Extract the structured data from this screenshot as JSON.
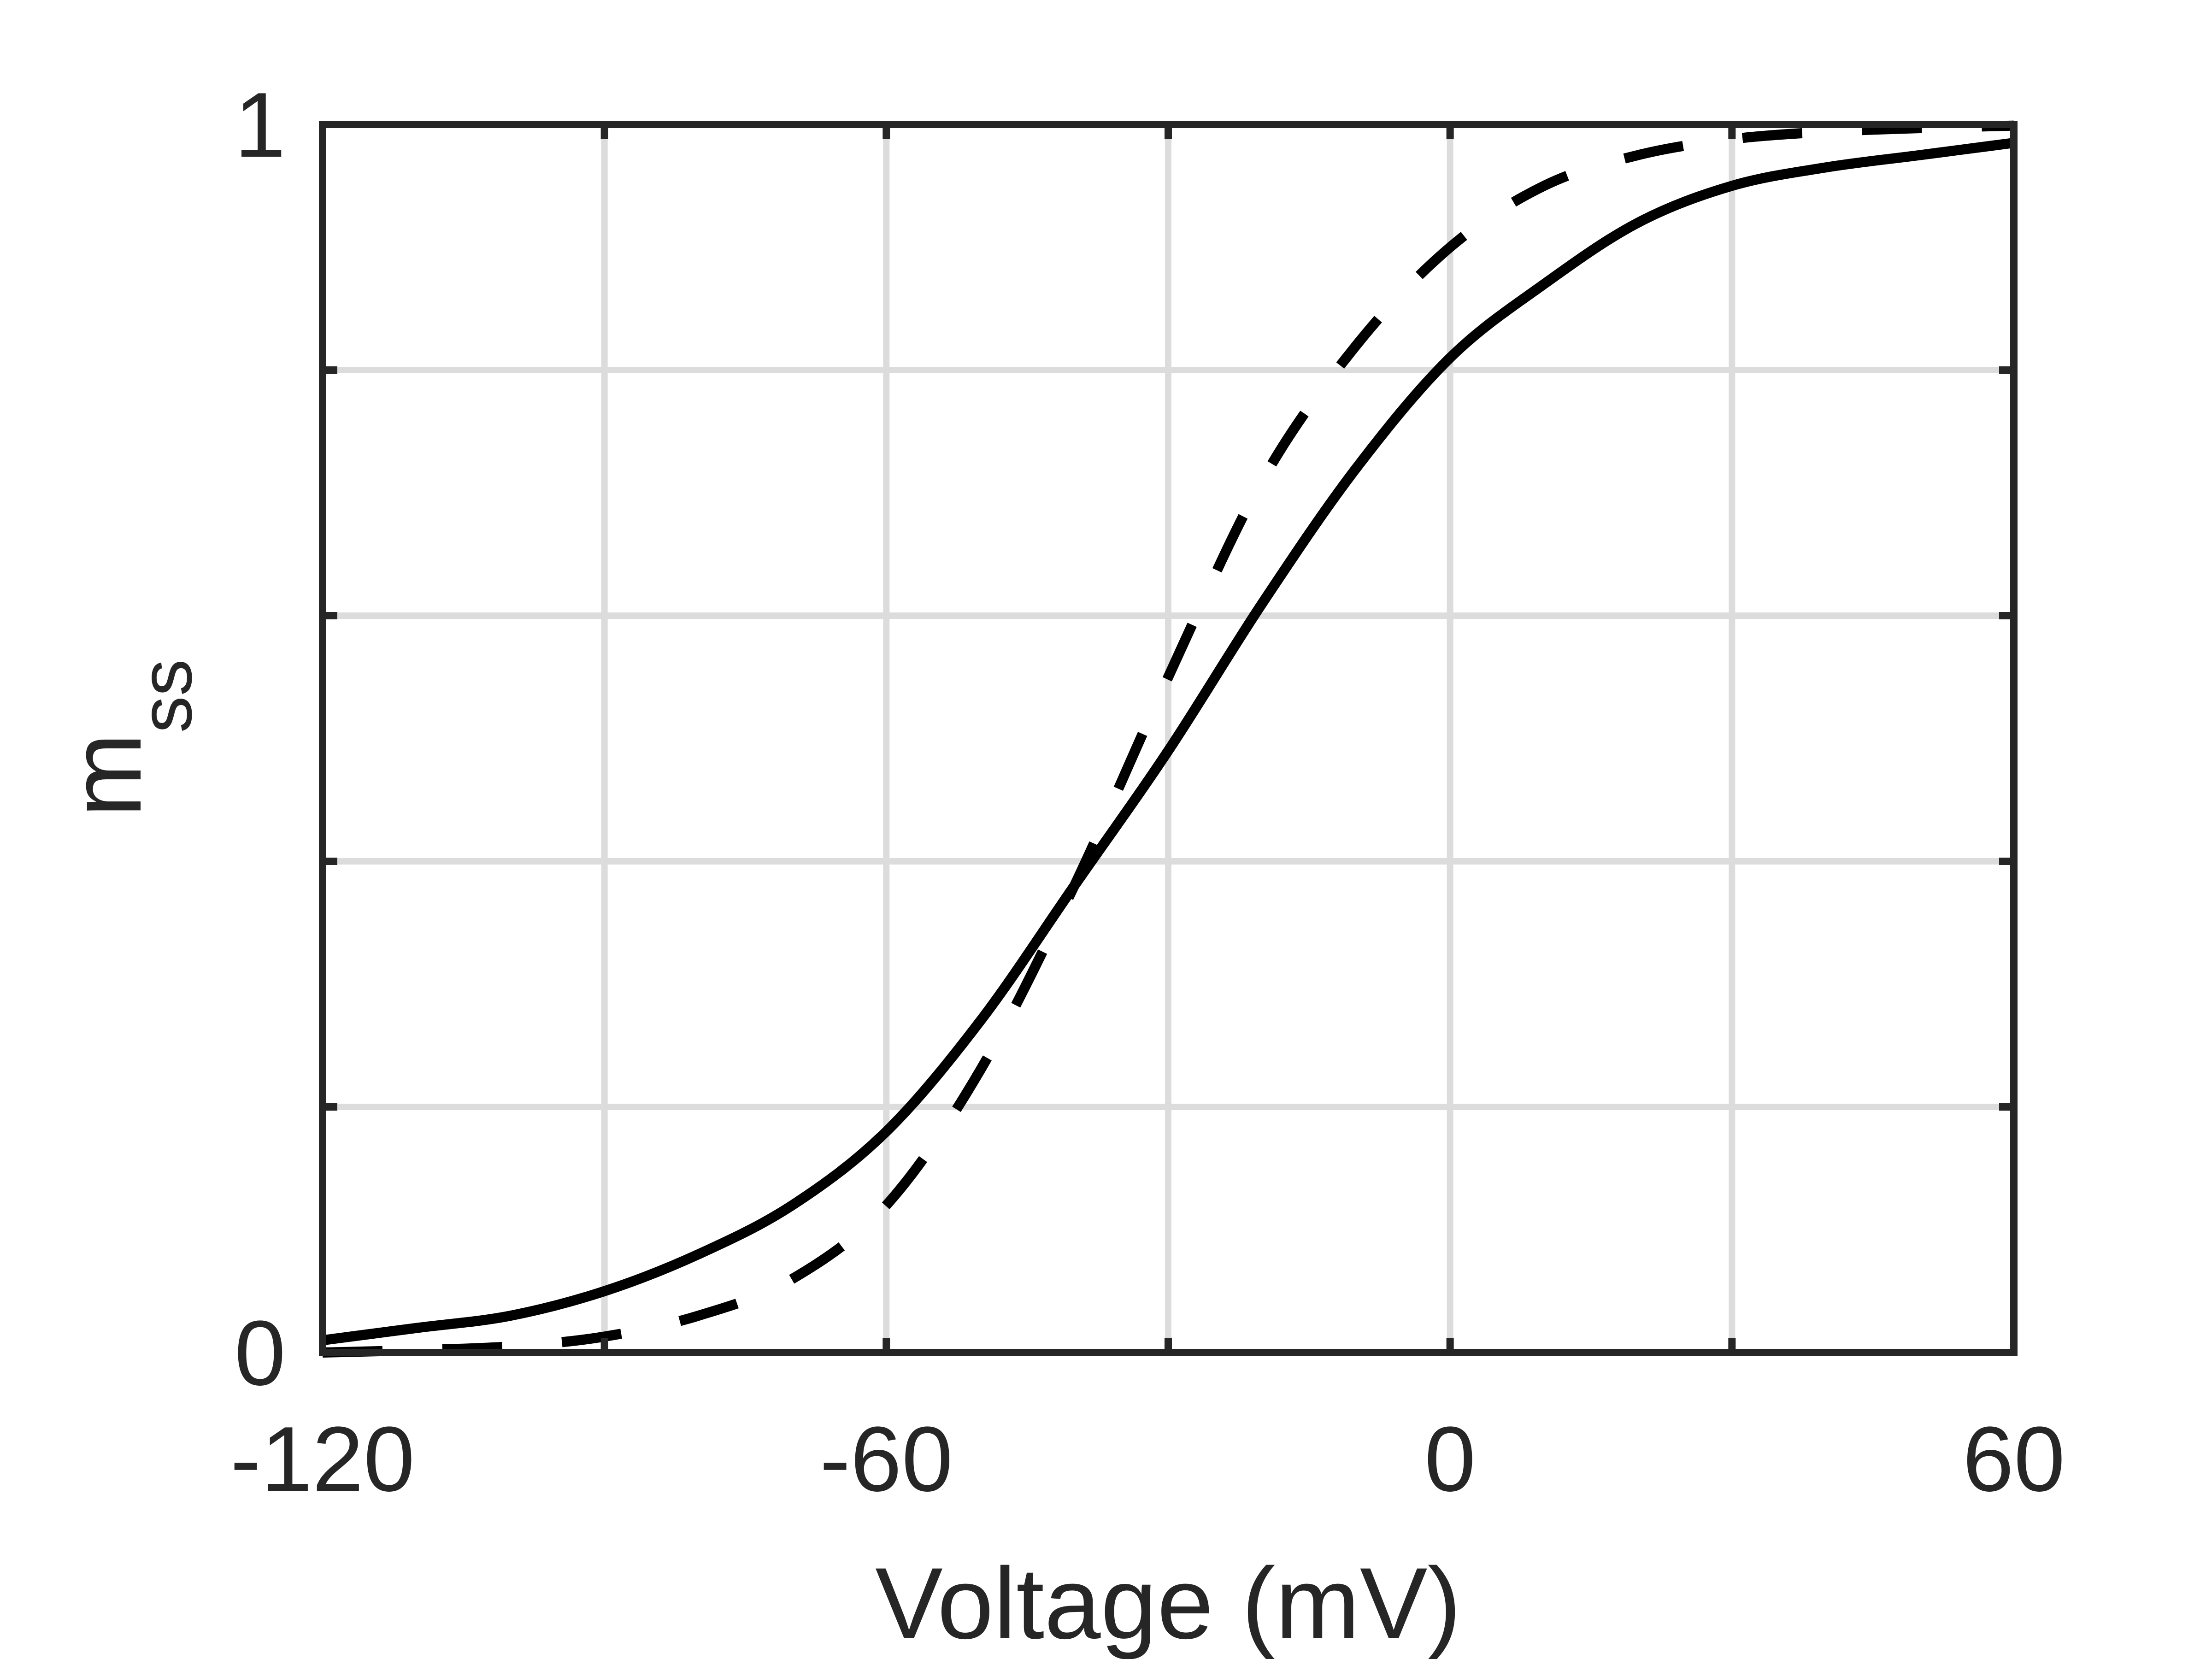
{
  "chart_data": {
    "type": "line",
    "title": "",
    "xlabel": "Voltage (mV)",
    "ylabel_main": "m",
    "ylabel_sub": "ss",
    "xlim": [
      -120,
      60
    ],
    "ylim": [
      0,
      1
    ],
    "x_ticks": [
      -120,
      -60,
      0,
      60
    ],
    "x_tick_labels": [
      "-120",
      "-60",
      "0",
      "60"
    ],
    "y_ticks": [
      0,
      1
    ],
    "y_tick_labels": [
      "0",
      "1"
    ],
    "grid": true,
    "grid_x": [
      -120,
      -90,
      -60,
      -30,
      0,
      30,
      60
    ],
    "grid_y": [
      0,
      0.2,
      0.4,
      0.6,
      0.8,
      1
    ],
    "series": [
      {
        "style": "solid",
        "color": "#000000",
        "x": [
          -120,
          -110,
          -100,
          -90,
          -80,
          -70,
          -60,
          -50,
          -40,
          -30,
          -20,
          -10,
          0,
          10,
          20,
          30,
          40,
          50,
          60
        ],
        "y": [
          0.01,
          0.02,
          0.03,
          0.05,
          0.08,
          0.12,
          0.18,
          0.27,
          0.38,
          0.49,
          0.61,
          0.72,
          0.81,
          0.87,
          0.92,
          0.95,
          0.965,
          0.975,
          0.985
        ]
      },
      {
        "style": "dashed",
        "color": "#000000",
        "x": [
          -120,
          -110,
          -100,
          -90,
          -80,
          -70,
          -60,
          -50,
          -40,
          -30,
          -20,
          -10,
          0,
          10,
          20,
          30,
          40,
          50,
          60
        ],
        "y": [
          0.0,
          0.002,
          0.005,
          0.013,
          0.03,
          0.06,
          0.12,
          0.23,
          0.38,
          0.55,
          0.71,
          0.82,
          0.9,
          0.95,
          0.975,
          0.988,
          0.994,
          0.997,
          0.999
        ]
      }
    ]
  }
}
